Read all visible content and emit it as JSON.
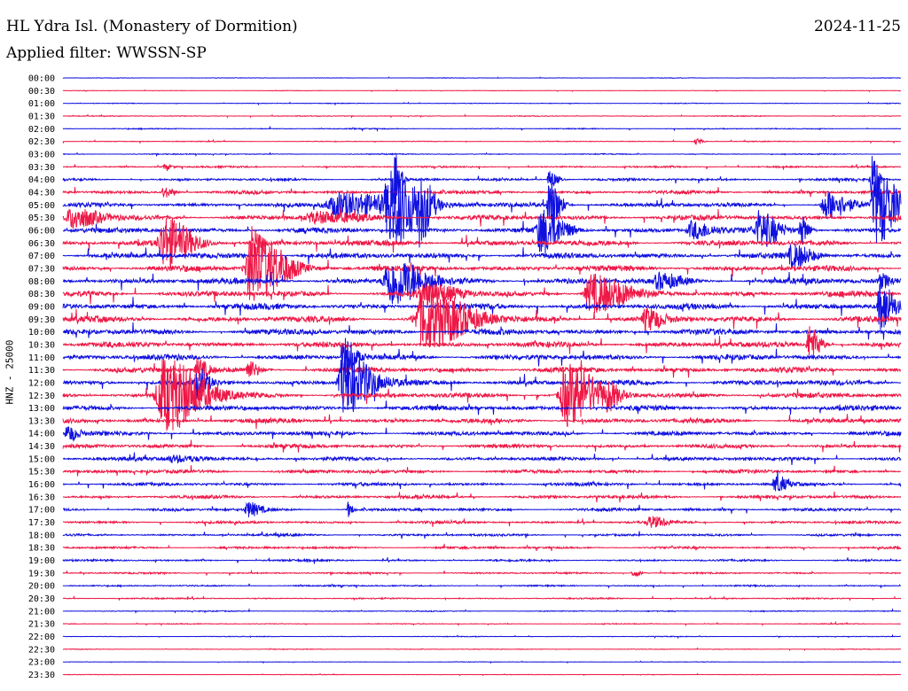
{
  "header": {
    "station": "HL Ydra Isl. (Monastery of Dormition)",
    "date": "2024-11-25",
    "filter": "Applied filter: WWSSN-SP"
  },
  "chart_data": {
    "type": "line",
    "title": "HL Ydra Isl. (Monastery of Dormition)",
    "ylabel": "HNZ - 25000",
    "xlabel": "",
    "grid": false,
    "colors": [
      "#1010e0",
      "#ee1846"
    ],
    "rows": [
      "00:00",
      "00:30",
      "01:00",
      "01:30",
      "02:00",
      "02:30",
      "03:00",
      "03:30",
      "04:00",
      "04:30",
      "05:00",
      "05:30",
      "06:00",
      "06:30",
      "07:00",
      "07:30",
      "08:00",
      "08:30",
      "09:00",
      "09:30",
      "10:00",
      "10:30",
      "11:00",
      "11:30",
      "12:00",
      "12:30",
      "13:00",
      "13:30",
      "14:00",
      "14:30",
      "15:00",
      "15:30",
      "16:00",
      "16:30",
      "17:00",
      "17:30",
      "18:00",
      "18:30",
      "19:00",
      "19:30",
      "20:00",
      "20:30",
      "21:00",
      "21:30",
      "22:00",
      "22:30",
      "23:00",
      "23:30"
    ],
    "noise_levels": [
      0.3,
      0.3,
      0.4,
      0.5,
      0.6,
      0.5,
      0.6,
      1.0,
      1.5,
      2.0,
      2.6,
      3.0,
      3.2,
      3.4,
      3.4,
      3.5,
      3.6,
      3.6,
      3.6,
      3.6,
      3.5,
      3.4,
      3.3,
      3.3,
      3.3,
      3.2,
      3.0,
      2.8,
      2.6,
      2.4,
      2.2,
      2.2,
      2.0,
      2.0,
      1.8,
      1.6,
      1.4,
      1.4,
      1.2,
      1.0,
      0.9,
      0.8,
      0.6,
      0.5,
      0.4,
      0.4,
      0.3,
      0.3
    ],
    "events": [
      {
        "row": 5,
        "x": 0.755,
        "amp": 4,
        "width": 0.006
      },
      {
        "row": 7,
        "x": 0.12,
        "amp": 3,
        "width": 0.008
      },
      {
        "row": 8,
        "x": 0.395,
        "amp": 30,
        "width": 0.006
      },
      {
        "row": 8,
        "x": 0.58,
        "amp": 10,
        "width": 0.008
      },
      {
        "row": 8,
        "x": 0.965,
        "amp": 30,
        "width": 0.006
      },
      {
        "row": 9,
        "x": 0.12,
        "amp": 6,
        "width": 0.01
      },
      {
        "row": 10,
        "x": 0.33,
        "amp": 14,
        "width": 0.06
      },
      {
        "row": 10,
        "x": 0.39,
        "amp": 40,
        "width": 0.025
      },
      {
        "row": 10,
        "x": 0.425,
        "amp": 30,
        "width": 0.01
      },
      {
        "row": 10,
        "x": 0.58,
        "amp": 30,
        "width": 0.01
      },
      {
        "row": 10,
        "x": 0.91,
        "amp": 16,
        "width": 0.02
      },
      {
        "row": 10,
        "x": 0.97,
        "amp": 45,
        "width": 0.018
      },
      {
        "row": 11,
        "x": 0.01,
        "amp": 12,
        "width": 0.025
      },
      {
        "row": 11,
        "x": 0.3,
        "amp": 6,
        "width": 0.04
      },
      {
        "row": 12,
        "x": 0.57,
        "amp": 25,
        "width": 0.02
      },
      {
        "row": 12,
        "x": 0.75,
        "amp": 10,
        "width": 0.02
      },
      {
        "row": 12,
        "x": 0.83,
        "amp": 20,
        "width": 0.018
      },
      {
        "row": 12,
        "x": 0.88,
        "amp": 16,
        "width": 0.008
      },
      {
        "row": 13,
        "x": 0.12,
        "amp": 28,
        "width": 0.025
      },
      {
        "row": 13,
        "x": 0.225,
        "amp": 22,
        "width": 0.008
      },
      {
        "row": 14,
        "x": 0.87,
        "amp": 12,
        "width": 0.018
      },
      {
        "row": 15,
        "x": 0.225,
        "amp": 40,
        "width": 0.03
      },
      {
        "row": 16,
        "x": 0.39,
        "amp": 28,
        "width": 0.03
      },
      {
        "row": 16,
        "x": 0.71,
        "amp": 8,
        "width": 0.02
      },
      {
        "row": 16,
        "x": 0.975,
        "amp": 7,
        "width": 0.01
      },
      {
        "row": 17,
        "x": 0.43,
        "amp": 12,
        "width": 0.03
      },
      {
        "row": 17,
        "x": 0.63,
        "amp": 22,
        "width": 0.03
      },
      {
        "row": 18,
        "x": 0.975,
        "amp": 28,
        "width": 0.012
      },
      {
        "row": 19,
        "x": 0.43,
        "amp": 34,
        "width": 0.04
      },
      {
        "row": 19,
        "x": 0.695,
        "amp": 12,
        "width": 0.015
      },
      {
        "row": 21,
        "x": 0.89,
        "amp": 22,
        "width": 0.01
      },
      {
        "row": 22,
        "x": 0.335,
        "amp": 24,
        "width": 0.01
      },
      {
        "row": 23,
        "x": 0.16,
        "amp": 12,
        "width": 0.01
      },
      {
        "row": 23,
        "x": 0.22,
        "amp": 10,
        "width": 0.01
      },
      {
        "row": 24,
        "x": 0.335,
        "amp": 36,
        "width": 0.025
      },
      {
        "row": 24,
        "x": 0.16,
        "amp": 16,
        "width": 0.01
      },
      {
        "row": 25,
        "x": 0.12,
        "amp": 42,
        "width": 0.035
      },
      {
        "row": 25,
        "x": 0.6,
        "amp": 34,
        "width": 0.03
      },
      {
        "row": 25,
        "x": 0.65,
        "amp": 10,
        "width": 0.01
      },
      {
        "row": 28,
        "x": 0.005,
        "amp": 9,
        "width": 0.01
      },
      {
        "row": 30,
        "x": 0.13,
        "amp": 4,
        "width": 0.03
      },
      {
        "row": 32,
        "x": 0.85,
        "amp": 10,
        "width": 0.01
      },
      {
        "row": 34,
        "x": 0.22,
        "amp": 8,
        "width": 0.012
      },
      {
        "row": 34,
        "x": 0.34,
        "amp": 9,
        "width": 0.004
      },
      {
        "row": 35,
        "x": 0.7,
        "amp": 6,
        "width": 0.015
      },
      {
        "row": 39,
        "x": 0.68,
        "amp": 4,
        "width": 0.008
      }
    ]
  }
}
